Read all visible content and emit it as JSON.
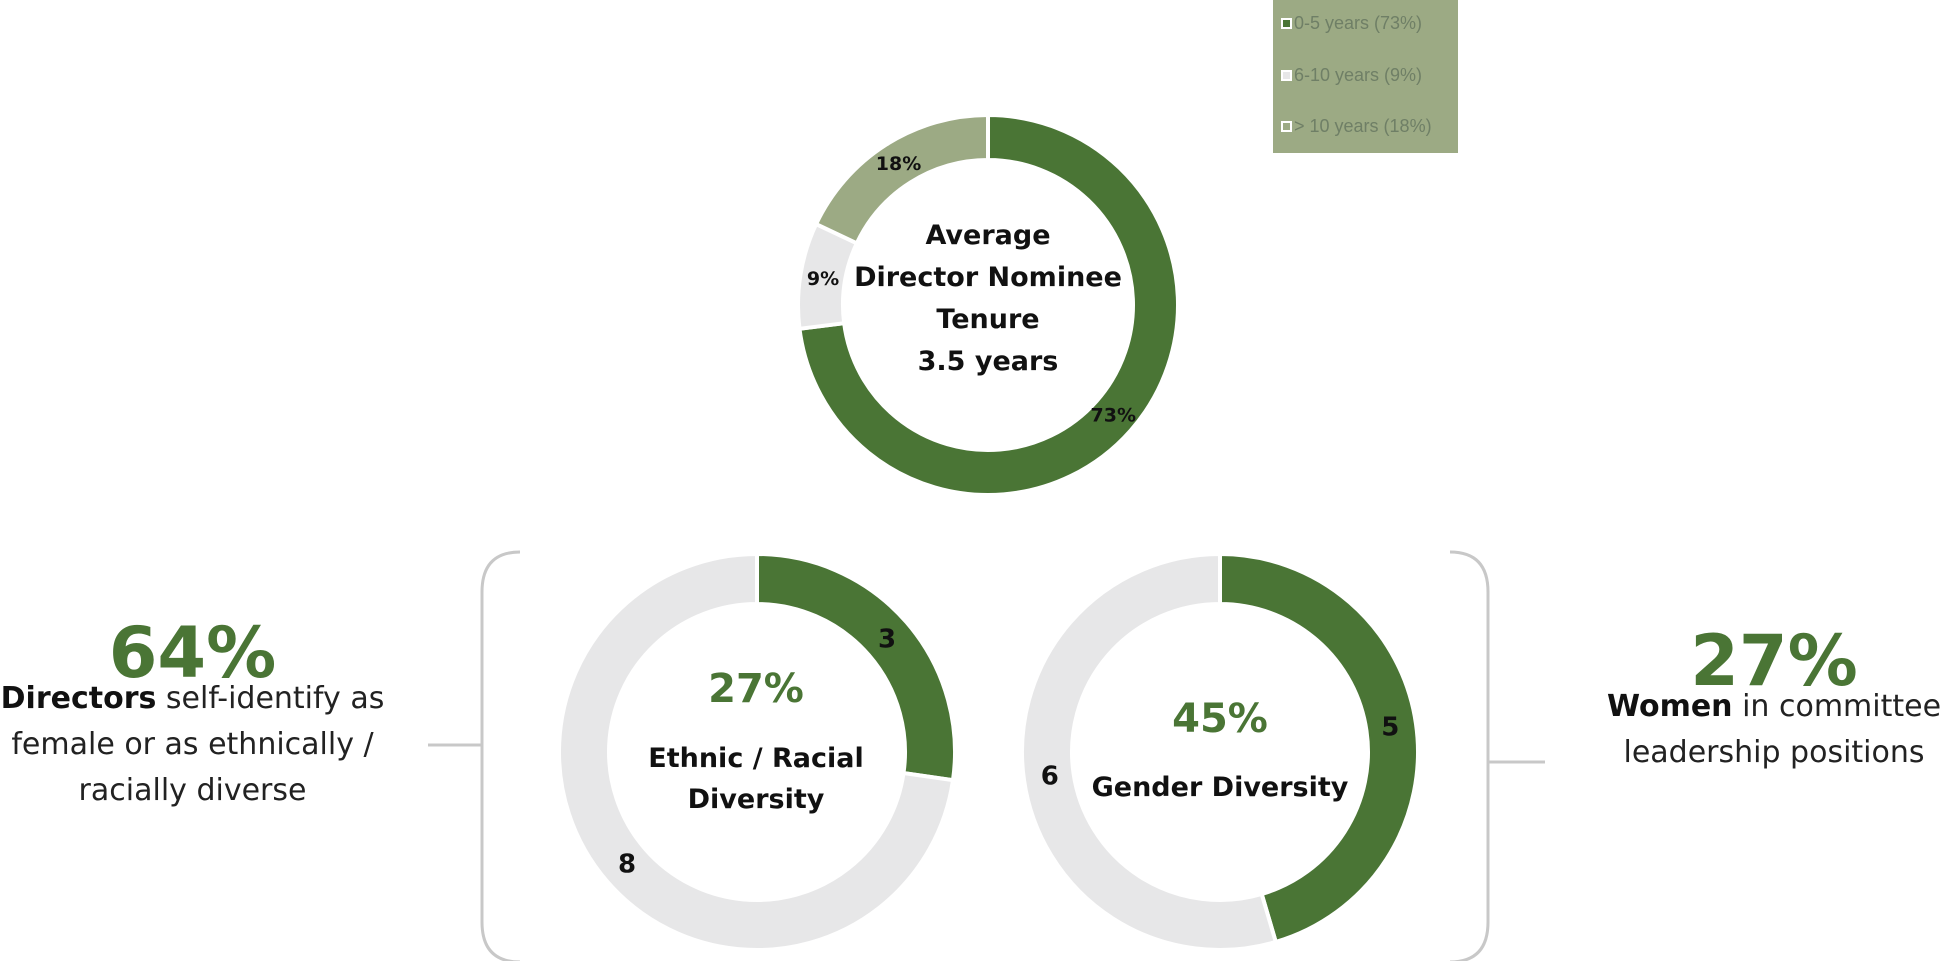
{
  "chart_data": [
    {
      "type": "pie",
      "variant": "donut",
      "title": "",
      "center_label": [
        "Average",
        "Director Nominee",
        "Tenure",
        "3.5 years"
      ],
      "categories": [
        "0-5 years",
        "6-10 years",
        "> 10 years"
      ],
      "values": [
        73,
        9,
        18
      ],
      "data_labels": [
        "73%",
        "9%",
        "18%"
      ],
      "colors": [
        "#4a7535",
        "#e7e7e8",
        "#9caa84"
      ],
      "legend": {
        "position": "top-right",
        "items": [
          "0-5 years  (73%)",
          "6-10 years  (9%)",
          "> 10 years  (18%)"
        ]
      }
    },
    {
      "type": "pie",
      "variant": "donut",
      "center_pct": "27%",
      "center_label": [
        "Ethnic / Racial",
        "Diversity"
      ],
      "values": [
        3,
        8
      ],
      "data_labels": [
        "3",
        "8"
      ],
      "colors": [
        "#4a7535",
        "#e7e7e8"
      ]
    },
    {
      "type": "pie",
      "variant": "donut",
      "center_pct": "45%",
      "center_label": [
        "Gender Diversity"
      ],
      "values": [
        5,
        6
      ],
      "data_labels": [
        "5",
        "6"
      ],
      "colors": [
        "#4a7535",
        "#e7e7e8"
      ]
    }
  ],
  "left_stat": {
    "pct": "64%",
    "bold": "Directors",
    "line1_rest": " self-identify as",
    "line2": "female or as ethnically /",
    "line3": "racially diverse"
  },
  "right_stat": {
    "pct": "27%",
    "bold": "Women",
    "line1_rest": " in committee",
    "line2": "leadership positions"
  },
  "colors": {
    "accent": "#4a7535",
    "light": "#e7e7e8",
    "mid": "#9caa84",
    "bracket": "#c8c8c8"
  }
}
